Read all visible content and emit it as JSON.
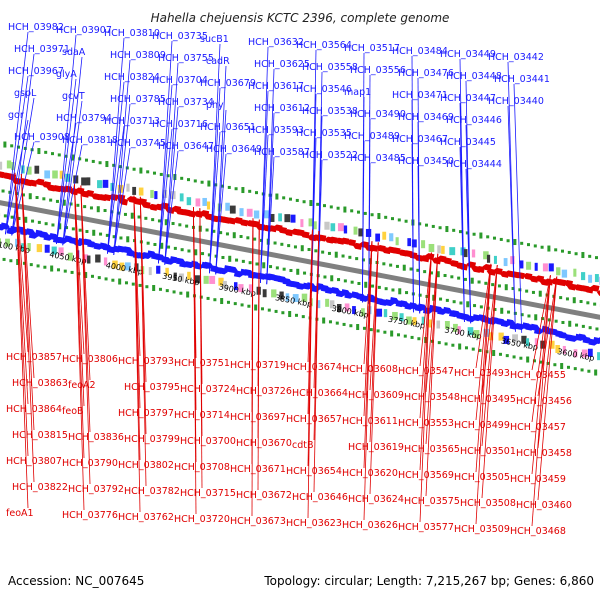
{
  "title": "Hahella chejuensis KCTC 2396, complete genome",
  "footer": {
    "accession": "Accession: NC_007645",
    "summary": "Topology: circular; Length: 7,215,267 bp; Genes: 6,860"
  },
  "colors": {
    "plus_strand": "#1a1aff",
    "minus_strand": "#e00000",
    "backbone": "#808080",
    "scale_dots": "#2a9a2a"
  },
  "scale_ticks": [
    "4100 kbp",
    "4050 kbp",
    "4000 kbp",
    "3950 kbp",
    "3900 kbp",
    "3850 kbp",
    "3800 kbp",
    "3750 kbp",
    "3700 kbp",
    "3650 kbp",
    "3600 kbp",
    "3550 kbp"
  ],
  "plus_strand_labels": [
    "HCH_03982",
    "HCH_03971",
    "HCH_03967",
    "gspL",
    "gor",
    "HCH_03908",
    "HCH_03907",
    "sdaA",
    "glyA",
    "gcvT",
    "HCH_03794",
    "HCH_03818",
    "HCH_03810",
    "HCH_03809",
    "HCH_03824",
    "HCH_03785",
    "HCH_03713",
    "HCH_03745",
    "HCH_03735",
    "HCH_03755",
    "HCH_03704",
    "HCH_03734",
    "HCH_03716",
    "HCH_03647",
    "sucB1",
    "cadR",
    "HCH_03679",
    "phy",
    "HCH_03651",
    "HCH_03649",
    "HCH_03632",
    "HCH_03625",
    "HCH_03617",
    "HCH_03612",
    "HCH_03593",
    "HCH_03587",
    "HCH_03564",
    "HCH_03558",
    "HCH_03546",
    "HCH_03538",
    "HCH_03535",
    "HCH_03522",
    "HCH_03517",
    "HCH_03556",
    "map1",
    "HCH_03490",
    "HCH_03489",
    "HCH_03485",
    "HCH_03484",
    "HCH_03476",
    "HCH_03471",
    "HCH_03469",
    "HCH_03467",
    "HCH_03450",
    "HCH_03449",
    "HCH_03448",
    "HCH_03447",
    "HCH_03446",
    "HCH_03445",
    "HCH_03444",
    "HCH_03442",
    "HCH_03441",
    "HCH_03440"
  ],
  "minus_strand_labels": [
    "HCH_03857",
    "HCH_03863",
    "HCH_03864",
    "HCH_03815",
    "HCH_03807",
    "HCH_03822",
    "feoA1",
    "HCH_03806",
    "feoA2",
    "feoB",
    "HCH_03836",
    "HCH_03790",
    "HCH_03792",
    "HCH_03776",
    "HCH_03793",
    "HCH_03795",
    "HCH_03797",
    "HCH_03799",
    "HCH_03802",
    "HCH_03782",
    "HCH_03762",
    "HCH_03751",
    "HCH_03724",
    "HCH_03714",
    "HCH_03700",
    "HCH_03708",
    "HCH_03715",
    "HCH_03720",
    "HCH_03719",
    "HCH_03726",
    "HCH_03697",
    "HCH_03670",
    "HCH_03671",
    "HCH_03672",
    "HCH_03673",
    "HCH_03674",
    "HCH_03664",
    "HCH_03657",
    "cdtB",
    "HCH_03654",
    "HCH_03646",
    "HCH_03623",
    "HCH_03608",
    "HCH_03609",
    "HCH_03611",
    "HCH_03619",
    "HCH_03620",
    "HCH_03624",
    "HCH_03626",
    "HCH_03547",
    "HCH_03548",
    "HCH_03553",
    "HCH_03565",
    "HCH_03569",
    "HCH_03575",
    "HCH_03577",
    "HCH_03493",
    "HCH_03495",
    "HCH_03499",
    "HCH_03501",
    "HCH_03505",
    "HCH_03508",
    "HCH_03509",
    "HCH_03455",
    "HCH_03456",
    "HCH_03457",
    "HCH_03458",
    "HCH_03459",
    "HCH_03460",
    "HCH_03468"
  ]
}
